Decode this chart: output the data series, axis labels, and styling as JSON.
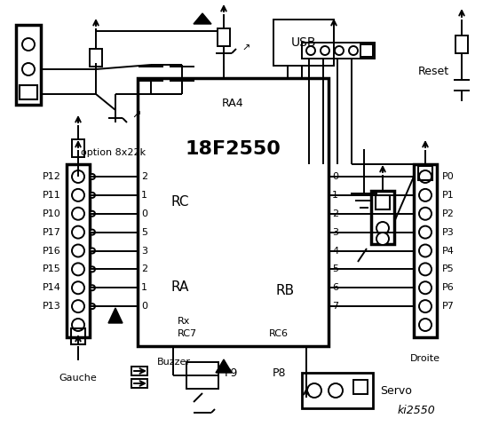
{
  "bg_color": "#ffffff",
  "fg_color": "#000000",
  "title": "ki2550",
  "chip_label": "18F2550",
  "chip_ra4": "RA4",
  "chip_rc_label": "RC",
  "chip_ra_label": "RA",
  "chip_rb_label": "RB",
  "chip_rx": "Rx",
  "chip_rc7": "RC7",
  "chip_rc6": "RC6",
  "left_pins_label": "Gauche",
  "right_pins_label": "Droite",
  "left_labels": [
    "P12",
    "P11",
    "P10",
    "P17",
    "P16",
    "P15",
    "P14",
    "P13"
  ],
  "right_labels": [
    "P0",
    "P1",
    "P2",
    "P3",
    "P4",
    "P5",
    "P6",
    "P7"
  ],
  "rc_pins": [
    "2",
    "1",
    "0"
  ],
  "ra_pins": [
    "5",
    "3",
    "2",
    "1",
    "0"
  ],
  "rb_pins": [
    "0",
    "1",
    "2",
    "3",
    "4",
    "5",
    "6",
    "7"
  ],
  "option_text": "option 8x22k",
  "usb_text": "USB",
  "reset_text": "Reset",
  "buzzer_text": "Buzzer",
  "p9_text": "P9",
  "p8_text": "P8",
  "servo_text": "Servo"
}
